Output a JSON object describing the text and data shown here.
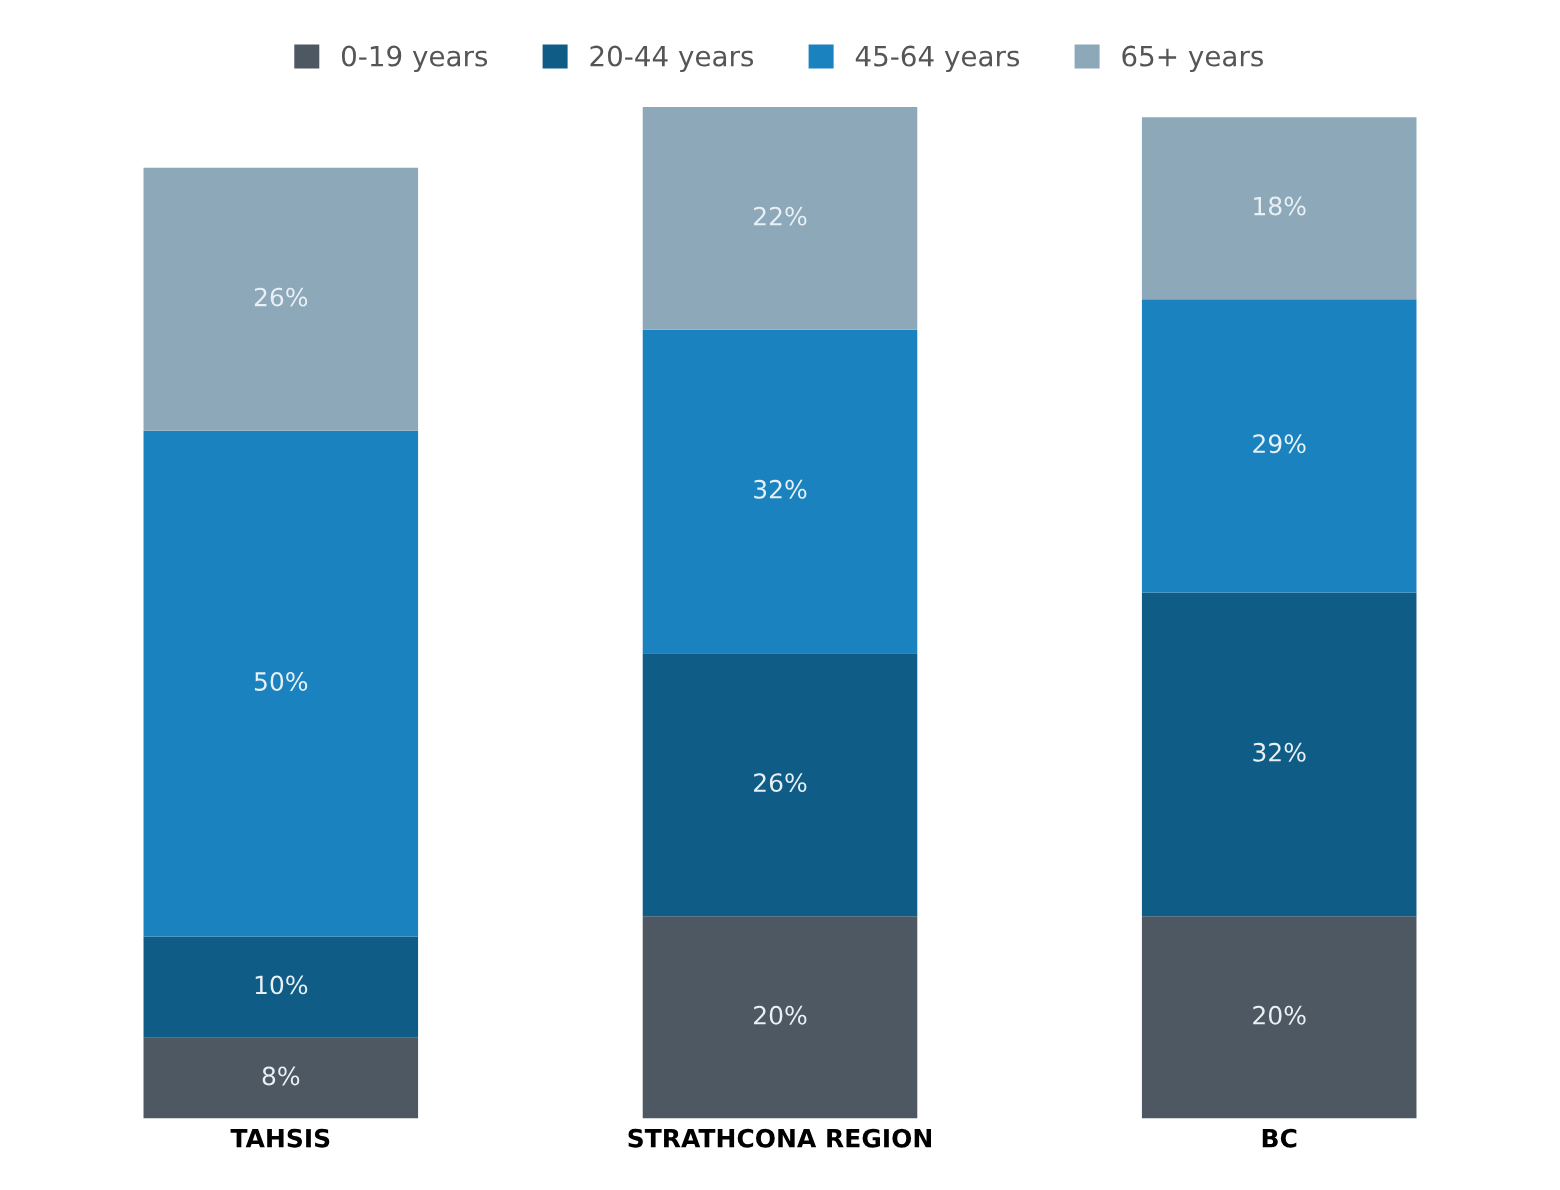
{
  "chart_data": {
    "type": "bar",
    "stacked": true,
    "legend": "top",
    "grid": false,
    "tick_labels": "x",
    "categories": [
      "TAHSIS",
      "STRATHCONA REGION",
      "BC"
    ],
    "series": [
      {
        "name": "0-19 years",
        "color": "#4e5863",
        "values": [
          8,
          20,
          20
        ],
        "value_labels": [
          "8%",
          "20%",
          "20%"
        ]
      },
      {
        "name": "20-44 years",
        "color": "#0f5d87",
        "values": [
          10,
          26,
          32
        ],
        "value_labels": [
          "10%",
          "26%",
          "32%"
        ]
      },
      {
        "name": "45-64 years",
        "color": "#1a83bf",
        "values": [
          50,
          32,
          29
        ],
        "value_labels": [
          "50%",
          "32%",
          "29%"
        ]
      },
      {
        "name": "65+ years",
        "color": "#8ca8b9",
        "values": [
          26,
          22,
          18
        ],
        "value_labels": [
          "26%",
          "22%",
          "18%"
        ]
      }
    ]
  }
}
